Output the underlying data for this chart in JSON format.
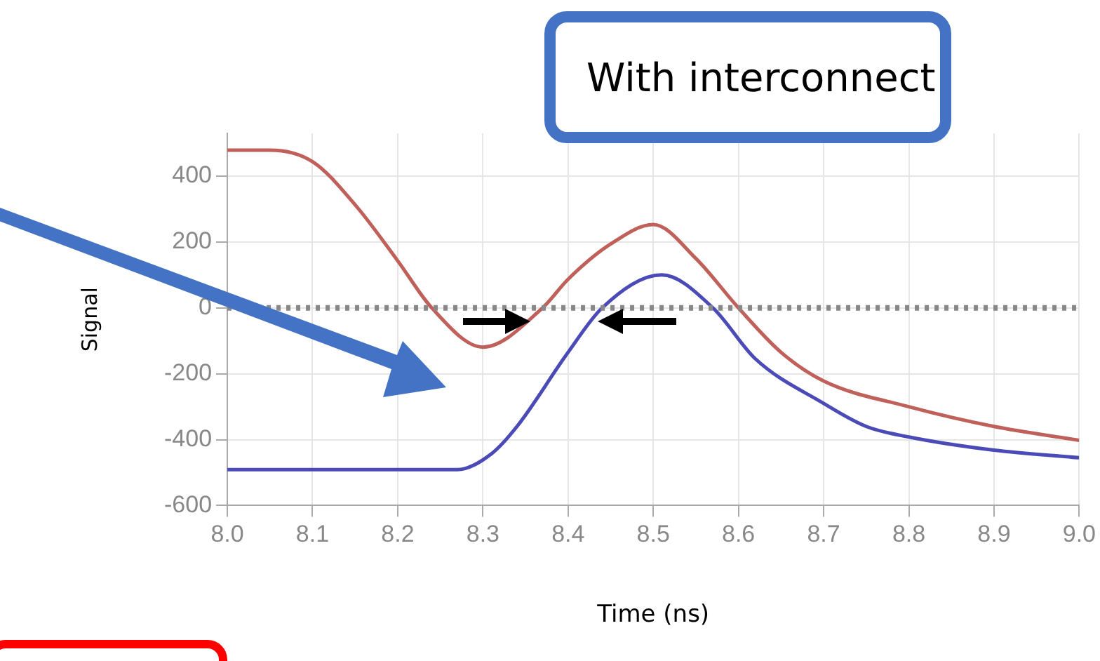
{
  "chart_data": {
    "type": "line",
    "xlabel": "Time (ns)",
    "ylabel": "Signal",
    "annotations": [
      "With interconnect"
    ],
    "xlim": [
      8.0,
      9.0
    ],
    "xticks": [
      {
        "value": 8.0,
        "label": "8.0"
      },
      {
        "value": 8.1,
        "label": "8.1"
      },
      {
        "value": 8.2,
        "label": "8.2"
      },
      {
        "value": 8.3,
        "label": "8.3"
      },
      {
        "value": 8.4,
        "label": "8.4"
      },
      {
        "value": 8.5,
        "label": "8.5"
      },
      {
        "value": 8.6,
        "label": "8.6"
      },
      {
        "value": 8.7,
        "label": "8.7"
      },
      {
        "value": 8.8,
        "label": "8.8"
      },
      {
        "value": 8.9,
        "label": "8.9"
      },
      {
        "value": 9.0,
        "label": "9.0"
      }
    ],
    "ylim": [
      -600,
      530
    ],
    "yticks": [
      -600,
      -400,
      -200,
      0,
      200,
      400
    ],
    "grid": true,
    "legend": false,
    "marker": "none",
    "line_style": "solid",
    "ref_lines": [
      {
        "axis": "y",
        "value": 0,
        "color": "#888888",
        "line_style": "dotted"
      }
    ],
    "series": [
      {
        "color": "#c0605a",
        "x": [
          8.0,
          8.05,
          8.1,
          8.15,
          8.2,
          8.24,
          8.3,
          8.37,
          8.4,
          8.45,
          8.5,
          8.55,
          8.6,
          8.65,
          8.7,
          8.8,
          8.9,
          9.0
        ],
        "values": [
          479,
          479,
          444,
          313,
          143,
          0,
          -119,
          0,
          87,
          194,
          253,
          150,
          0,
          -135,
          -222,
          -300,
          -360,
          -402
        ]
      },
      {
        "color": "#4b4bb8",
        "x": [
          8.0,
          8.1,
          8.2,
          8.27,
          8.31,
          8.34,
          8.4,
          8.44,
          8.51,
          8.57,
          8.62,
          8.7,
          8.75,
          8.8,
          8.9,
          9.0
        ],
        "values": [
          -491,
          -491,
          -491,
          -491,
          -443,
          -360,
          -135,
          0,
          100,
          0,
          -155,
          -290,
          -360,
          -392,
          -432,
          -455
        ]
      }
    ]
  }
}
